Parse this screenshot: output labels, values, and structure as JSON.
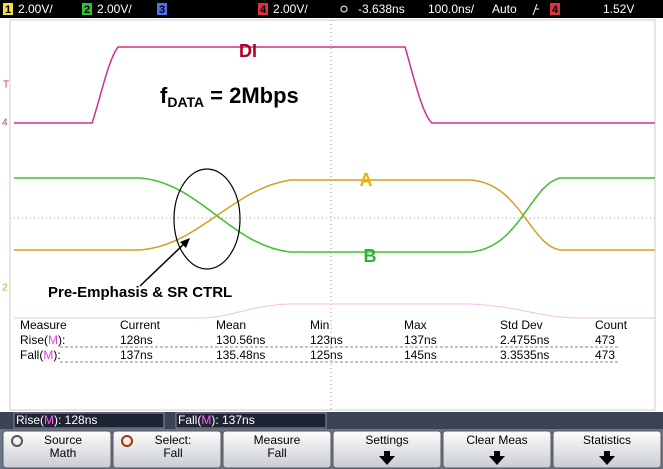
{
  "header": {
    "ch1": {
      "number": "1",
      "scale": "2.00V/"
    },
    "ch2": {
      "number": "2",
      "scale": "2.00V/"
    },
    "ch3": {
      "number": "3"
    },
    "ch4": {
      "number": "4",
      "scale": "2.00V/"
    },
    "delay": "-3.638ns",
    "timebase": "100.0ns/",
    "trigger_mode": "Auto",
    "trigger_source": "4",
    "trigger_level": "1.52V"
  },
  "annotations": {
    "di": "DI",
    "fdata": {
      "base": "f",
      "sub": "DATA",
      "rest": "= 2Mbps"
    },
    "a": "A",
    "b": "B",
    "note": "Pre-Emphasis & SR CTRL"
  },
  "measurements": {
    "columns": [
      "Measure",
      "Current",
      "Mean",
      "Min",
      "Max",
      "Std Dev",
      "Count"
    ],
    "rows": [
      {
        "label": [
          "Rise(",
          "M",
          "):"
        ],
        "cells": [
          "128ns",
          "130.56ns",
          "123ns",
          "137ns",
          "2.4755ns",
          "473"
        ]
      },
      {
        "label": [
          "Fall(",
          "M",
          "):"
        ],
        "cells": [
          "137ns",
          "135.48ns",
          "125ns",
          "145ns",
          "3.3535ns",
          "473"
        ]
      }
    ]
  },
  "status": [
    [
      "Rise(",
      "M",
      "): 128ns"
    ],
    [
      "Fall(",
      "M",
      "): 137ns"
    ]
  ],
  "softkeys": [
    [
      "Source",
      "Math"
    ],
    [
      "Select:",
      "Fall"
    ],
    [
      "Measure",
      "Fall"
    ],
    [
      "Settings"
    ],
    [
      "Clear Meas"
    ],
    [
      "Statistics"
    ]
  ]
}
